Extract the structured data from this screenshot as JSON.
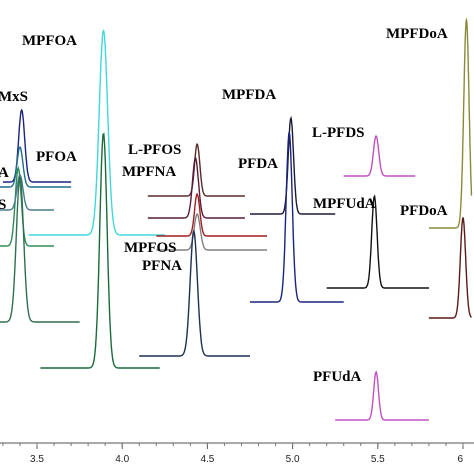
{
  "chart_data": {
    "type": "line",
    "title": "",
    "xlabel": "",
    "ylabel": "",
    "xlim": [
      3.0,
      6.05
    ],
    "x_ticks": [
      "3.5",
      "4.0",
      "4.5",
      "5.0",
      "5.5",
      "6"
    ],
    "x_tick_values": [
      3.5,
      4.0,
      4.5,
      5.0,
      5.5,
      6.0
    ],
    "traces": [
      {
        "name": "MPFOA",
        "color": "#40d8dc",
        "peak_x": 3.89,
        "width": 0.035,
        "base_y": 235,
        "height": 205,
        "x_start": 3.45,
        "x_end": 4.25
      },
      {
        "name": "",
        "color": "#1a6a3a",
        "peak_x": 3.89,
        "width": 0.03,
        "base_y": 368,
        "height": 235,
        "x_start": 3.52,
        "x_end": 4.22
      },
      {
        "name": "MxS",
        "color": "#1a237e",
        "peak_x": 3.41,
        "width": 0.025,
        "base_y": 182,
        "height": 72,
        "x_start": 3.3,
        "x_end": 3.7
      },
      {
        "name": "PFOA",
        "color": "#1f6f8b",
        "peak_x": 3.4,
        "width": 0.024,
        "base_y": 187,
        "height": 40,
        "x_start": 3.25,
        "x_end": 3.7
      },
      {
        "name": "A",
        "color": "#2e8b57",
        "peak_x": 3.39,
        "width": 0.025,
        "base_y": 246,
        "height": 78,
        "x_start": 3.0,
        "x_end": 3.6
      },
      {
        "name": "S",
        "color": "#4a7a8c",
        "peak_x": 3.4,
        "width": 0.025,
        "base_y": 210,
        "height": 35,
        "x_start": 3.0,
        "x_end": 3.6
      },
      {
        "name": "",
        "color": "#2f6f4f",
        "peak_x": 3.4,
        "width": 0.03,
        "base_y": 322,
        "height": 145,
        "x_start": 3.0,
        "x_end": 3.75
      },
      {
        "name": "L-PFOS",
        "color": "#5a2a2a",
        "peak_x": 4.44,
        "width": 0.022,
        "base_y": 196,
        "height": 52,
        "x_start": 4.15,
        "x_end": 4.72
      },
      {
        "name": "MPFNA",
        "color": "#5a1a3a",
        "peak_x": 4.43,
        "width": 0.025,
        "base_y": 218,
        "height": 60,
        "x_start": 4.15,
        "x_end": 4.72
      },
      {
        "name": "MPFOS",
        "color": "#a11f1f",
        "peak_x": 4.44,
        "width": 0.022,
        "base_y": 236,
        "height": 42,
        "x_start": 4.2,
        "x_end": 4.85
      },
      {
        "name": "PFNA",
        "color": "#808080",
        "peak_x": 4.44,
        "width": 0.025,
        "base_y": 250,
        "height": 36,
        "x_start": 4.2,
        "x_end": 4.85
      },
      {
        "name": "",
        "color": "#1e2f4f",
        "peak_x": 4.42,
        "width": 0.03,
        "base_y": 356,
        "height": 125,
        "x_start": 4.1,
        "x_end": 4.75
      },
      {
        "name": "MPFDA",
        "color": "#1a1a3a",
        "peak_x": 4.99,
        "width": 0.022,
        "base_y": 214,
        "height": 96,
        "x_start": 4.75,
        "x_end": 5.25
      },
      {
        "name": "PFDA",
        "color": "#1a237e",
        "peak_x": 4.98,
        "width": 0.025,
        "base_y": 302,
        "height": 170,
        "x_start": 4.75,
        "x_end": 5.3
      },
      {
        "name": "L-PFDS",
        "color": "#c050c0",
        "peak_x": 5.49,
        "width": 0.022,
        "base_y": 176,
        "height": 40,
        "x_start": 5.3,
        "x_end": 5.72
      },
      {
        "name": "MPFUdA",
        "color": "#111111",
        "peak_x": 5.48,
        "width": 0.022,
        "base_y": 288,
        "height": 92,
        "x_start": 5.2,
        "x_end": 5.8
      },
      {
        "name": "PFUdA",
        "color": "#c050c0",
        "peak_x": 5.49,
        "width": 0.02,
        "base_y": 420,
        "height": 48,
        "x_start": 5.25,
        "x_end": 5.8
      },
      {
        "name": "MPFDoA",
        "color": "#8a8a3a",
        "peak_x": 6.02,
        "width": 0.022,
        "base_y": 228,
        "height": 208,
        "x_start": 5.8,
        "x_end": 6.05
      },
      {
        "name": "PFDoA",
        "color": "#5a1a1a",
        "peak_x": 6.0,
        "width": 0.022,
        "base_y": 318,
        "height": 100,
        "x_start": 5.8,
        "x_end": 6.05
      }
    ],
    "labels": [
      {
        "text": "MPFOA",
        "color": "#40d8dc"
      },
      {
        "text": "MxS",
        "color": "#1a237e"
      },
      {
        "text": "PFOA",
        "color": "#1f6f8b"
      },
      {
        "text": "A",
        "color": "#2e8b57"
      },
      {
        "text": "S",
        "color": "#4a7a8c"
      },
      {
        "text": "L-PFOS",
        "color": "#111111"
      },
      {
        "text": "MPFNA",
        "color": "#5a1a3a"
      },
      {
        "text": "MPFOS",
        "color": "#a11f1f"
      },
      {
        "text": "PFNA",
        "color": "#9a9a9a"
      },
      {
        "text": "MPFDA",
        "color": "#111111"
      },
      {
        "text": "PFDA",
        "color": "#1a237e"
      },
      {
        "text": "L-PFDS",
        "color": "#c050c0"
      },
      {
        "text": "MPFUdA",
        "color": "#111111"
      },
      {
        "text": "PFDoA",
        "color": "#111111"
      },
      {
        "text": "MPFDoA",
        "color": "#8a8a3a"
      },
      {
        "text": "PFUdA",
        "color": "#c050c0"
      }
    ]
  }
}
